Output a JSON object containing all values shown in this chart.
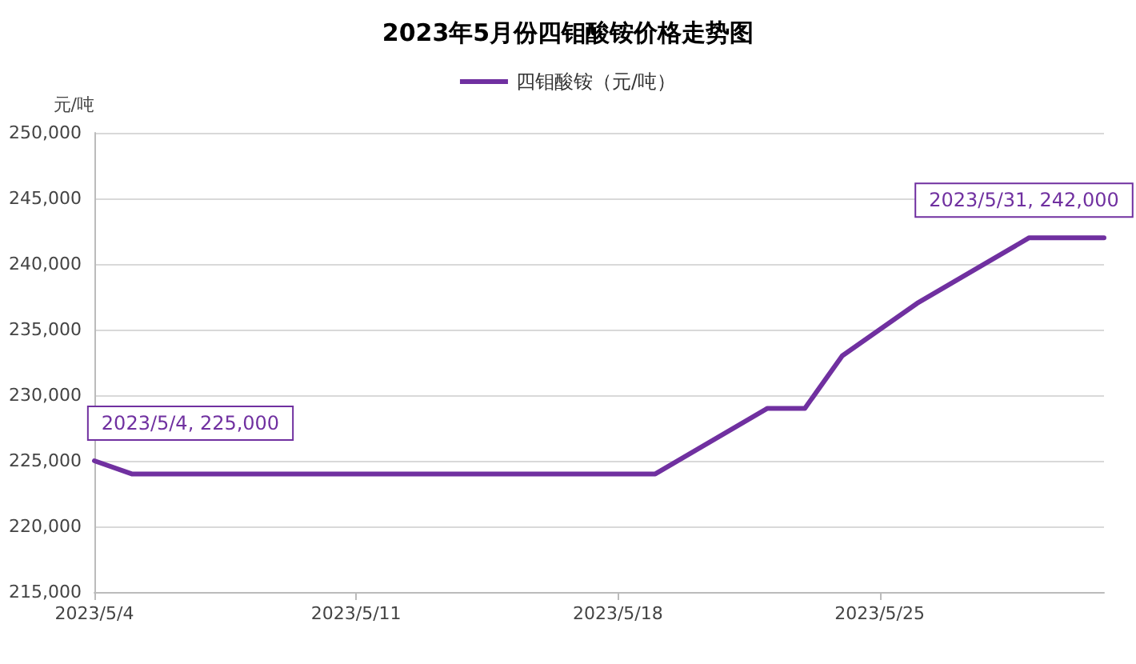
{
  "chart_data": {
    "type": "line",
    "title": "2023年5月份四钼酸铵价格走势图",
    "ylabel": "元/吨",
    "x": [
      "2023-05-04",
      "2023-05-05",
      "2023-05-19",
      "2023-05-22",
      "2023-05-23",
      "2023-05-24",
      "2023-05-26",
      "2023-05-29",
      "2023-05-31"
    ],
    "series": [
      {
        "name": "四钼酸铵（元/吨）",
        "color": "#7030a0",
        "values": [
          225000,
          224000,
          224000,
          229000,
          229000,
          233000,
          237000,
          242000,
          242000
        ]
      }
    ],
    "xlim": [
      "2023-05-04",
      "2023-05-31"
    ],
    "xticks": [
      {
        "value": "2023-05-04",
        "label": "2023/5/4"
      },
      {
        "value": "2023-05-11",
        "label": "2023/5/11"
      },
      {
        "value": "2023-05-18",
        "label": "2023/5/18"
      },
      {
        "value": "2023-05-25",
        "label": "2023/5/25"
      }
    ],
    "ylim": [
      215000,
      250000
    ],
    "yticks": [
      {
        "value": 215000,
        "label": "215,000"
      },
      {
        "value": 220000,
        "label": "220,000"
      },
      {
        "value": 225000,
        "label": "225,000"
      },
      {
        "value": 230000,
        "label": "230,000"
      },
      {
        "value": 235000,
        "label": "235,000"
      },
      {
        "value": 240000,
        "label": "240,000"
      },
      {
        "value": 245000,
        "label": "245,000"
      },
      {
        "value": 250000,
        "label": "250,000"
      }
    ],
    "grid": "y",
    "legend": "top",
    "marker": "none",
    "line_style": "solid",
    "annotations": [
      {
        "text": "2023/5/4, 225,000",
        "x": "2023-05-04",
        "y": 225000
      },
      {
        "text": "2023/5/31, 242,000",
        "x": "2023-05-31",
        "y": 242000
      }
    ]
  }
}
